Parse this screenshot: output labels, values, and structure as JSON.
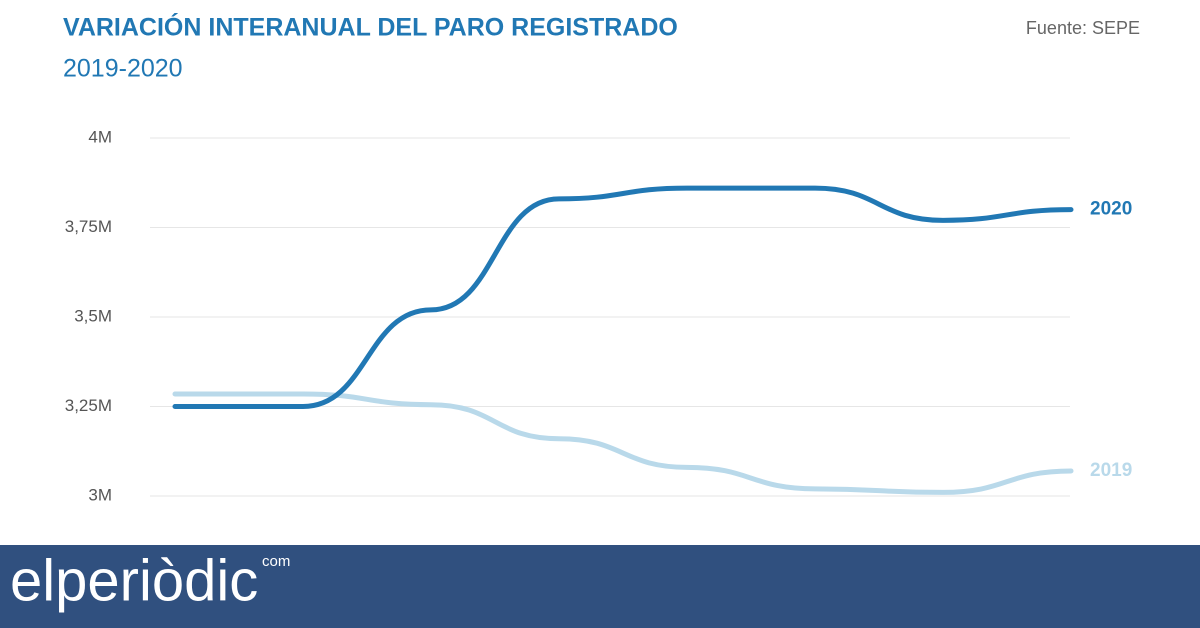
{
  "chart_data": {
    "type": "line",
    "title": "VARIACIÓN INTERANUAL DEL PARO REGISTRADO",
    "subtitle": "2019-2020",
    "source": "Fuente: SEPE",
    "categories": [
      null,
      null,
      null,
      null,
      null,
      null,
      null,
      null
    ],
    "series": [
      {
        "name": "2020",
        "color": "#2178b4",
        "values": [
          3250000,
          3250000,
          3520000,
          3830000,
          3860000,
          3860000,
          3770000,
          3800000
        ]
      },
      {
        "name": "2019",
        "color": "#b9d9ea",
        "values": [
          3285000,
          3285000,
          3255000,
          3160000,
          3080000,
          3020000,
          3010000,
          3070000
        ]
      }
    ],
    "ylim": [
      3000000,
      4000000
    ],
    "yticks": [
      {
        "value": 3000000,
        "label": "3M"
      },
      {
        "value": 3250000,
        "label": "3,25M"
      },
      {
        "value": 3500000,
        "label": "3,5M"
      },
      {
        "value": 3750000,
        "label": "3,75M"
      },
      {
        "value": 4000000,
        "label": "4M"
      }
    ],
    "grid": true
  },
  "footer": {
    "brand": "elperiòdic",
    "suffix": "com"
  }
}
